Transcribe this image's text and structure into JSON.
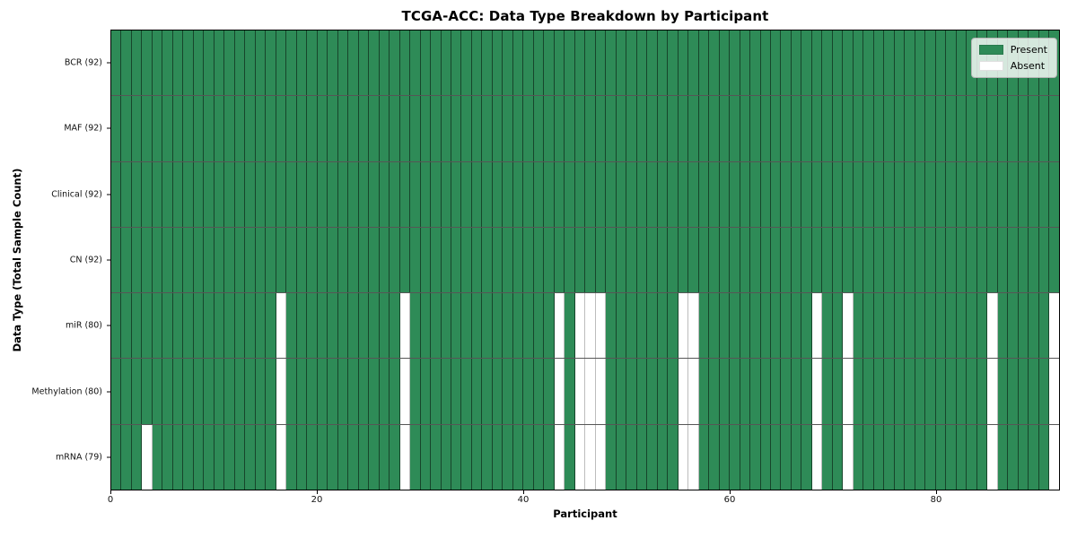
{
  "chart_data": {
    "type": "heatmap",
    "title": "TCGA-ACC: Data Type Breakdown by Participant",
    "xlabel": "Participant",
    "ylabel": "Data Type (Total Sample Count)",
    "n_participants": 92,
    "x_range": [
      0,
      92
    ],
    "x_ticks": [
      0,
      20,
      40,
      60,
      80
    ],
    "grid": false,
    "legend_position": "upper right",
    "cell_states": [
      "Present",
      "Absent"
    ],
    "colors": {
      "present": "#2e8b57",
      "absent": "#ffffff"
    },
    "legend": [
      {
        "label": "Present",
        "color": "#2e8b57"
      },
      {
        "label": "Absent",
        "color": "#ffffff"
      }
    ],
    "rows": [
      {
        "label": "BCR (92)",
        "data_type": "BCR",
        "total": 92,
        "absent_participants": []
      },
      {
        "label": "MAF (92)",
        "data_type": "MAF",
        "total": 92,
        "absent_participants": []
      },
      {
        "label": "Clinical (92)",
        "data_type": "Clinical",
        "total": 92,
        "absent_participants": []
      },
      {
        "label": "CN (92)",
        "data_type": "CN",
        "total": 92,
        "absent_participants": []
      },
      {
        "label": "miR (80)",
        "data_type": "miR",
        "total": 80,
        "absent_participants": [
          16,
          28,
          43,
          45,
          46,
          47,
          55,
          56,
          68,
          71,
          85,
          91
        ]
      },
      {
        "label": "Methylation (80)",
        "data_type": "Methylation",
        "total": 80,
        "absent_participants": [
          16,
          28,
          43,
          45,
          46,
          47,
          55,
          56,
          68,
          71,
          85,
          91
        ]
      },
      {
        "label": "mRNA (79)",
        "data_type": "mRNA",
        "total": 79,
        "absent_participants": [
          3,
          16,
          28,
          43,
          45,
          46,
          47,
          55,
          56,
          68,
          71,
          85,
          91
        ]
      }
    ]
  }
}
